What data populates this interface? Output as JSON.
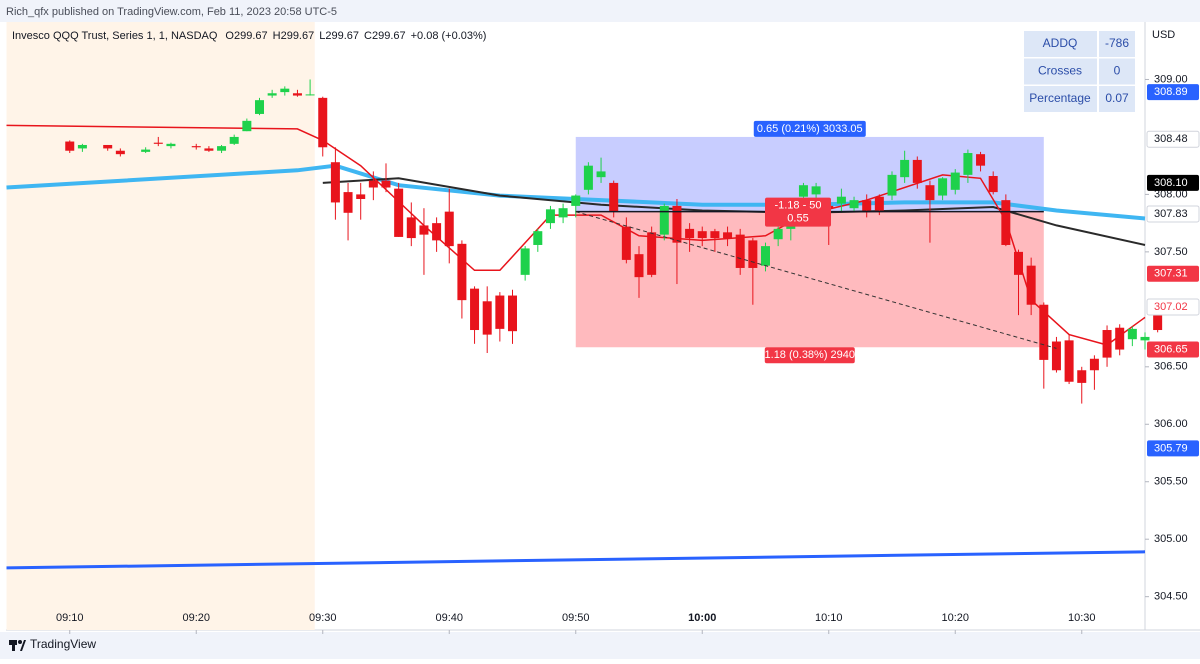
{
  "header": {
    "published": "Rich_qfx published on TradingView.com, Feb 11, 2023 20:58 UTC-5"
  },
  "chart_data": {
    "type": "candlestick",
    "symbol": "Invesco QQQ Trust, Series 1, 1, NASDAQ",
    "ohlc": [
      {
        "key": "O",
        "value": 299.67
      },
      {
        "key": "H",
        "value": 299.67
      },
      {
        "key": "L",
        "value": 299.67
      },
      {
        "key": "C",
        "value": 299.67
      }
    ],
    "change": "+0.08 (+0.03%)",
    "currency": "USD",
    "up_color": "#1ed14b",
    "down_color": "#e8141c",
    "extended_hours_end": "09:30",
    "x": [
      "09:10",
      "09:11",
      "09:13",
      "09:14",
      "09:16",
      "09:17",
      "09:18",
      "09:20",
      "09:21",
      "09:22",
      "09:23",
      "09:24",
      "09:25",
      "09:26",
      "09:27",
      "09:28",
      "09:29",
      "09:30",
      "09:31",
      "09:32",
      "09:33",
      "09:34",
      "09:35",
      "09:36",
      "09:37",
      "09:38",
      "09:39",
      "09:40",
      "09:41",
      "09:42",
      "09:43",
      "09:44",
      "09:45",
      "09:46",
      "09:47",
      "09:48",
      "09:49",
      "09:50",
      "09:51",
      "09:52",
      "09:53",
      "09:54",
      "09:55",
      "09:56",
      "09:57",
      "09:58",
      "09:59",
      "10:00",
      "10:01",
      "10:02",
      "10:03",
      "10:04",
      "10:05",
      "10:06",
      "10:07",
      "10:08",
      "10:09",
      "10:10",
      "10:11",
      "10:12",
      "10:13",
      "10:14",
      "10:15",
      "10:16",
      "10:17",
      "10:18",
      "10:19",
      "10:20",
      "10:21",
      "10:22",
      "10:23",
      "10:24",
      "10:25",
      "10:26",
      "10:27",
      "10:28",
      "10:29",
      "10:30",
      "10:31",
      "10:32",
      "10:33",
      "10:34",
      "10:35",
      "10:36"
    ],
    "open": [
      308.46,
      308.4,
      308.43,
      308.38,
      308.37,
      308.45,
      308.42,
      308.42,
      308.4,
      308.38,
      308.44,
      308.55,
      308.7,
      308.86,
      308.89,
      308.88,
      308.87,
      308.84,
      308.28,
      308.02,
      308.0,
      308.12,
      308.12,
      308.05,
      307.8,
      307.73,
      307.75,
      307.85,
      307.57,
      307.18,
      307.07,
      307.12,
      307.12,
      307.3,
      307.56,
      307.75,
      307.8,
      307.9,
      308.04,
      308.15,
      308.1,
      307.72,
      307.48,
      307.67,
      307.65,
      307.9,
      307.7,
      307.68,
      307.68,
      307.67,
      307.65,
      307.6,
      307.38,
      307.61,
      307.7,
      307.98,
      308.0,
      307.9,
      307.92,
      307.88,
      307.95,
      307.98,
      307.99,
      308.15,
      308.3,
      308.08,
      307.99,
      308.04,
      308.17,
      308.35,
      308.16,
      307.95,
      307.5,
      307.38,
      307.04,
      306.72,
      306.73,
      306.47,
      306.57,
      306.82,
      306.84,
      306.74,
      306.73,
      306.98
    ],
    "high": [
      308.47,
      308.44,
      308.43,
      308.4,
      308.41,
      308.5,
      308.45,
      308.44,
      308.42,
      308.43,
      308.52,
      308.66,
      308.84,
      308.91,
      308.94,
      308.91,
      309.0,
      308.85,
      308.41,
      308.1,
      308.1,
      308.2,
      308.27,
      308.1,
      307.93,
      307.88,
      307.8,
      308.05,
      307.6,
      307.2,
      307.2,
      307.15,
      307.17,
      307.55,
      307.7,
      307.9,
      307.92,
      308.0,
      308.28,
      308.32,
      308.12,
      307.8,
      307.55,
      307.72,
      307.92,
      307.96,
      307.75,
      307.72,
      307.7,
      307.72,
      307.7,
      307.62,
      307.58,
      307.72,
      307.8,
      308.1,
      308.1,
      307.95,
      308.05,
      307.98,
      308.0,
      308.0,
      308.2,
      308.38,
      308.33,
      308.12,
      308.15,
      308.22,
      308.39,
      308.37,
      308.2,
      308.0,
      307.52,
      307.45,
      307.06,
      306.76,
      306.78,
      306.5,
      306.6,
      306.86,
      306.87,
      306.85,
      306.8,
      307.08
    ],
    "low": [
      308.36,
      308.37,
      308.38,
      308.33,
      308.36,
      308.42,
      308.4,
      308.39,
      308.37,
      308.36,
      308.43,
      308.55,
      308.69,
      308.84,
      308.86,
      308.85,
      308.86,
      308.33,
      307.78,
      307.6,
      307.78,
      307.95,
      308.02,
      307.63,
      307.55,
      307.3,
      307.5,
      307.4,
      306.92,
      306.7,
      306.62,
      306.72,
      306.7,
      307.25,
      307.5,
      307.7,
      307.75,
      307.8,
      308.0,
      308.1,
      307.8,
      307.4,
      307.1,
      307.28,
      307.6,
      307.22,
      307.5,
      307.55,
      307.5,
      307.55,
      307.3,
      307.04,
      307.33,
      307.55,
      307.6,
      307.8,
      307.95,
      307.56,
      307.85,
      307.85,
      307.8,
      307.82,
      307.95,
      308.1,
      308.05,
      307.58,
      307.95,
      308.0,
      308.1,
      308.2,
      308.0,
      307.55,
      306.95,
      306.95,
      306.31,
      306.45,
      306.35,
      306.18,
      306.3,
      306.5,
      306.6,
      306.68,
      306.65,
      306.8
    ],
    "close": [
      308.38,
      308.43,
      308.4,
      308.35,
      308.39,
      308.44,
      308.44,
      308.41,
      308.38,
      308.42,
      308.5,
      308.64,
      308.82,
      308.88,
      308.92,
      308.86,
      308.87,
      308.41,
      307.93,
      307.84,
      307.96,
      308.06,
      308.06,
      307.63,
      307.62,
      307.65,
      307.6,
      307.55,
      307.08,
      306.82,
      306.78,
      306.83,
      306.81,
      307.53,
      307.68,
      307.87,
      307.88,
      307.99,
      308.25,
      308.2,
      307.85,
      307.43,
      307.28,
      307.3,
      307.9,
      307.58,
      307.62,
      307.62,
      307.62,
      307.62,
      307.36,
      307.36,
      307.55,
      307.7,
      307.77,
      308.08,
      308.07,
      307.88,
      307.98,
      307.95,
      307.86,
      307.86,
      308.17,
      308.3,
      308.1,
      307.95,
      308.14,
      308.19,
      308.36,
      308.25,
      308.02,
      307.56,
      307.3,
      307.04,
      306.56,
      306.47,
      306.37,
      306.36,
      306.47,
      306.58,
      306.65,
      306.83,
      306.76,
      306.82
    ],
    "lines": [
      {
        "color": "#3fb6f2",
        "width": 4,
        "x": [
          "09:05",
          "09:28",
          "09:31",
          "09:36",
          "09:44",
          "09:52",
          "10:00",
          "10:08",
          "10:16",
          "10:23",
          "10:28",
          "10:35"
        ],
        "values": [
          308.06,
          308.21,
          308.25,
          308.08,
          307.99,
          307.95,
          307.91,
          307.91,
          307.93,
          307.93,
          307.86,
          307.79
        ]
      },
      {
        "color": "#2a2a2a",
        "width": 2,
        "x": [
          "09:30",
          "09:36",
          "09:44",
          "09:52",
          "10:00",
          "10:08",
          "10:16",
          "10:23",
          "10:28",
          "10:35"
        ],
        "values": [
          308.1,
          308.14,
          307.99,
          307.91,
          307.86,
          307.84,
          307.86,
          307.89,
          307.73,
          307.56
        ]
      },
      {
        "color": "#e8141c",
        "width": 1.5,
        "x": [
          "09:05",
          "09:28",
          "09:30",
          "09:33",
          "09:38",
          "09:42",
          "09:44",
          "09:48",
          "09:52",
          "09:55",
          "10:00",
          "10:05",
          "10:08",
          "10:13",
          "10:19",
          "10:22",
          "10:24",
          "10:26",
          "10:29",
          "10:32",
          "10:35"
        ],
        "values": [
          308.6,
          308.57,
          308.47,
          308.25,
          307.73,
          307.34,
          307.34,
          307.82,
          307.82,
          307.64,
          307.6,
          307.64,
          307.82,
          307.95,
          308.17,
          308.14,
          307.77,
          307.08,
          306.78,
          306.69,
          306.93
        ]
      },
      {
        "color": "#2962ff",
        "width": 3,
        "x": [
          "09:05",
          "10:35"
        ],
        "values": [
          304.75,
          304.89
        ]
      }
    ],
    "position": {
      "start": "09:50",
      "end": "10:27",
      "target": 308.5,
      "entry": 307.85,
      "stop": 306.67,
      "target_label": "0.65 (0.21%) 3033.05",
      "stop_label": "1.18 (0.38%) 2940",
      "pnl_label": [
        "-1.18 - 50",
        "0.55"
      ],
      "trail_end": {
        "x": "10:28",
        "value": 306.66
      }
    },
    "xlim": [
      "09:05",
      "10:35"
    ],
    "xticks": [
      "09:10",
      "09:20",
      "09:30",
      "09:40",
      "09:50",
      "10:00",
      "10:10",
      "10:20",
      "10:30"
    ],
    "ylim": [
      304.21,
      309.5
    ],
    "yticks": [
      {
        "value": 309,
        "label": "309.00"
      },
      {
        "value": 308,
        "label": "308.00"
      },
      {
        "value": 307.5,
        "label": "307.50"
      },
      {
        "value": 306.5,
        "label": "306.50"
      },
      {
        "value": 306,
        "label": "306.00"
      },
      {
        "value": 305.5,
        "label": "305.50"
      },
      {
        "value": 305,
        "label": "305.00"
      },
      {
        "value": 304.5,
        "label": "304.50"
      }
    ],
    "price_labels": [
      {
        "value": 308.89,
        "label": "308.89",
        "bg": "#2962ff",
        "fg": "#ffffff"
      },
      {
        "value": 308.48,
        "label": "308.48",
        "bg": "#ffffff",
        "fg": "#131722"
      },
      {
        "value": 308.1,
        "label": "308.10",
        "bg": "#000000",
        "fg": "#ffffff"
      },
      {
        "value": 307.83,
        "label": "307.83",
        "bg": "#ffffff",
        "fg": "#131722"
      },
      {
        "value": 307.31,
        "label": "307.31",
        "bg": "#f23645",
        "fg": "#ffffff"
      },
      {
        "value": 307.02,
        "label": "307.02",
        "bg": "#ffffff",
        "fg": "#f23645"
      },
      {
        "value": 306.65,
        "label": "306.65",
        "bg": "#f23645",
        "fg": "#ffffff"
      },
      {
        "value": 305.79,
        "label": "305.79",
        "bg": "#2962ff",
        "fg": "#ffffff"
      }
    ]
  },
  "indicator_table": {
    "rows": [
      [
        "ADDQ",
        "-786"
      ],
      [
        "Crosses",
        "0"
      ],
      [
        "Percentage",
        "0.07"
      ]
    ]
  },
  "footer": {
    "brand": "TradingView"
  }
}
